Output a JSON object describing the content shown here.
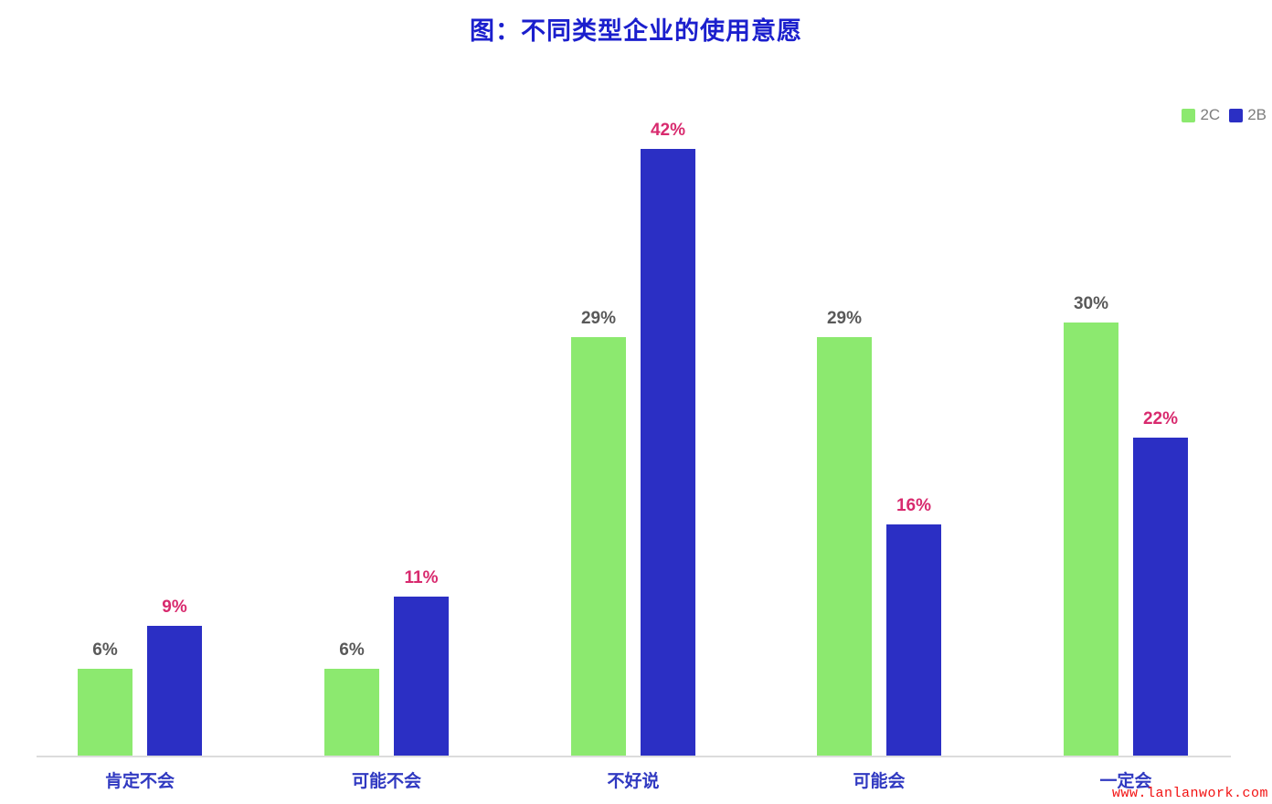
{
  "page": {
    "title": "图：不同类型企业的使用意愿",
    "watermark": "www.lanlanwork.com",
    "background": "#ffffff",
    "title_color": "#1b1fcd",
    "category_label_color": "#3039c1",
    "watermark_color": "#f21111",
    "axis_line_color": "#dcdcdc"
  },
  "legend": {
    "items": [
      {
        "label": "2C",
        "color": "#8ce96f"
      },
      {
        "label": "2B",
        "color": "#2b2fc4"
      }
    ]
  },
  "chart_data": {
    "type": "bar",
    "title": "图：不同类型企业的使用意愿",
    "categories": [
      "肯定不会",
      "可能不会",
      "不好说",
      "可能会",
      "一定会"
    ],
    "series": [
      {
        "name": "2C",
        "color": "#8ce96f",
        "label_color": "#595959",
        "values": [
          6,
          6,
          29,
          29,
          30
        ]
      },
      {
        "name": "2B",
        "color": "#2b2fc4",
        "label_color": "#d82a6e",
        "values": [
          9,
          11,
          42,
          16,
          22
        ]
      }
    ],
    "value_suffix": "%",
    "xlabel": "",
    "ylabel": "",
    "ylim": [
      0,
      45
    ],
    "grid": false,
    "y_axis_visible": false,
    "legend_position": "top-right"
  }
}
